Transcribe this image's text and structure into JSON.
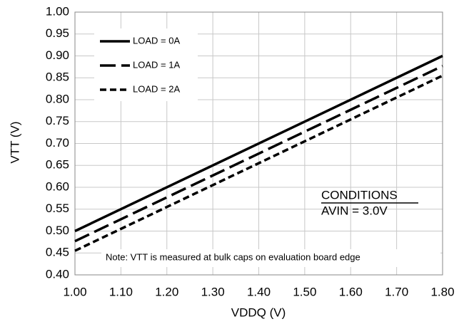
{
  "chart_data": {
    "type": "line",
    "x_label": "VDDQ (V)",
    "y_label": "VTT (V)",
    "x": [
      1.0,
      1.8
    ],
    "series": [
      {
        "name": "LOAD = 0A",
        "color": "#000000",
        "line_style": "solid",
        "values": [
          0.5,
          0.9
        ]
      },
      {
        "name": "LOAD = 1A",
        "color": "#000000",
        "line_style": "long-dash",
        "values": [
          0.477,
          0.877
        ]
      },
      {
        "name": "LOAD = 2A",
        "color": "#000000",
        "line_style": "short-dash",
        "values": [
          0.455,
          0.855
        ]
      }
    ],
    "xlim": [
      1.0,
      1.8
    ],
    "xticks": [
      {
        "value": 1.0,
        "label": "1.00"
      },
      {
        "value": 1.1,
        "label": "1.10"
      },
      {
        "value": 1.2,
        "label": "1.20"
      },
      {
        "value": 1.3,
        "label": "1.30"
      },
      {
        "value": 1.4,
        "label": "1.40"
      },
      {
        "value": 1.5,
        "label": "1.50"
      },
      {
        "value": 1.6,
        "label": "1.60"
      },
      {
        "value": 1.7,
        "label": "1.70"
      },
      {
        "value": 1.8,
        "label": "1.80"
      }
    ],
    "ylim": [
      0.4,
      1.0
    ],
    "yticks": [
      {
        "value": 0.4,
        "label": "0.40"
      },
      0.45,
      {
        "value": 0.5,
        "label": "0.50"
      },
      0.55,
      {
        "value": 0.6,
        "label": "0.60"
      },
      0.65,
      {
        "value": 0.7,
        "label": "0.70"
      },
      0.75,
      {
        "value": 0.8,
        "label": "0.80"
      },
      0.85,
      {
        "value": 0.9,
        "label": "0.90"
      },
      0.95,
      {
        "value": 1.0,
        "label": "1.00"
      }
    ],
    "grid": true,
    "legend": "upper left",
    "annotations": [
      "CONDITIONS",
      "AVIN = 3.0V",
      "Note: VTT is measured at bulk caps on evaluation board edge"
    ]
  }
}
